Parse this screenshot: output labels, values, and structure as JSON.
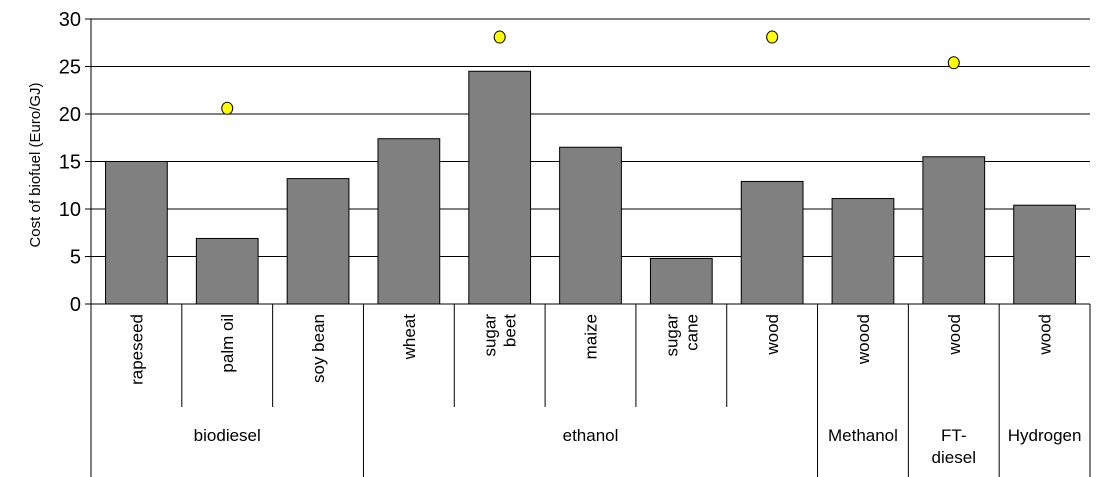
{
  "chart_data": {
    "type": "bar",
    "ylabel": "Cost of biofuel (Euro/GJ)",
    "ylim": [
      0,
      30
    ],
    "yticks": [
      0,
      5,
      10,
      15,
      20,
      25,
      30
    ],
    "grid": true,
    "categories": [
      "rapeseed",
      "palm oil",
      "soy bean",
      "wheat",
      "sugar beet",
      "maize",
      "sugar cane",
      "wood",
      "woood",
      "wood",
      "wood"
    ],
    "category_lines": [
      [
        "rapeseed"
      ],
      [
        "palm oil"
      ],
      [
        "soy bean"
      ],
      [
        "wheat"
      ],
      [
        "sugar",
        "beet"
      ],
      [
        "maize"
      ],
      [
        "sugar",
        "cane"
      ],
      [
        "wood"
      ],
      [
        "woood"
      ],
      [
        "wood"
      ],
      [
        "wood"
      ]
    ],
    "groups": [
      {
        "label_lines": [
          "biodiesel"
        ],
        "start": 0,
        "end": 2
      },
      {
        "label_lines": [
          "ethanol"
        ],
        "start": 3,
        "end": 7
      },
      {
        "label_lines": [
          "Methanol"
        ],
        "start": 8,
        "end": 8
      },
      {
        "label_lines": [
          "FT-",
          "diesel"
        ],
        "start": 9,
        "end": 9
      },
      {
        "label_lines": [
          "Hydrogen"
        ],
        "start": 10,
        "end": 10
      }
    ],
    "series": [
      {
        "type": "bar",
        "color": "#808080",
        "values": [
          15.0,
          6.9,
          13.2,
          17.4,
          24.5,
          16.5,
          4.8,
          12.9,
          11.1,
          15.5,
          10.4
        ]
      },
      {
        "type": "marker",
        "color": "#FFFF00",
        "values": [
          null,
          20.6,
          null,
          null,
          28.1,
          null,
          null,
          28.1,
          null,
          25.4,
          null
        ]
      }
    ]
  }
}
